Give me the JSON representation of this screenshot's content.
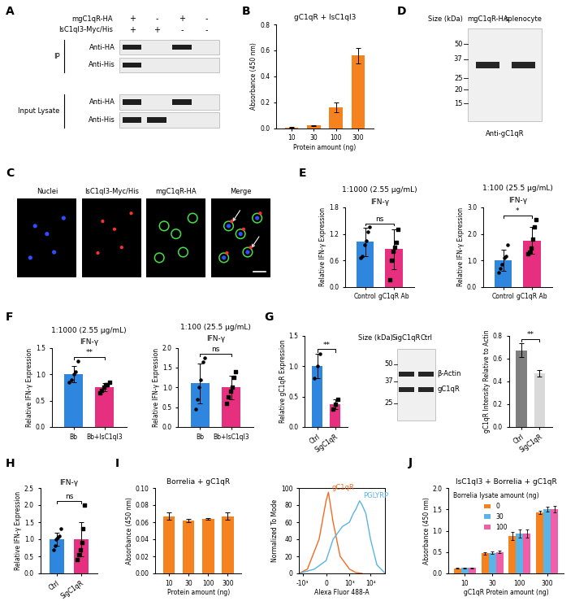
{
  "chart_data": [
    {
      "label": "B",
      "type": "bar",
      "title": "gC1qR + IsC1ql3",
      "x_label": "Protein amount (ng)",
      "y_label": "Absorbance (450 nm)",
      "categories": [
        "10",
        "30",
        "100",
        "300"
      ],
      "values": [
        0.005,
        0.02,
        0.16,
        0.56
      ],
      "errors": [
        0.002,
        0.005,
        0.04,
        0.06
      ],
      "color": "#f5821f",
      "ylim": [
        0,
        0.8
      ],
      "yticks": [
        {
          "value": 0,
          "label": "0.0"
        },
        0.2,
        0.4,
        0.6,
        0.8
      ]
    },
    {
      "label": "E",
      "type": "bar",
      "title": "1:1000 (2.55 μg/mL)",
      "subtitle": "IFN-γ",
      "y_label": "Relative IFN-γ Expression",
      "categories": [
        "Control",
        "gC1qR Ab"
      ],
      "values": [
        1.02,
        0.85
      ],
      "errors": [
        0.32,
        0.45
      ],
      "points": [
        [
          0.65,
          0.7,
          0.95,
          1.05,
          1.25,
          1.35
        ],
        [
          0.15,
          0.6,
          0.8,
          0.9,
          1.0,
          1.3
        ]
      ],
      "colors": [
        "#2e86de",
        "#e6307f"
      ],
      "significance": "ns",
      "ylim": [
        0,
        1.8
      ],
      "yticks": [
        {
          "value": 0,
          "label": "0.0"
        },
        0.6,
        1.2,
        1.8
      ]
    },
    {
      "type": "bar",
      "title": "1:100 (25.5 μg/mL)",
      "subtitle": "IFN-γ",
      "y_label": "Relative IFN-γ Expression",
      "categories": [
        "Control",
        "gC1qR Ab"
      ],
      "values": [
        1.0,
        1.75
      ],
      "errors": [
        0.4,
        0.5
      ],
      "points": [
        [
          0.55,
          0.7,
          0.85,
          1.1,
          1.15,
          1.6
        ],
        [
          1.25,
          1.3,
          1.45,
          1.8,
          2.25,
          2.55
        ]
      ],
      "colors": [
        "#2e86de",
        "#e6307f"
      ],
      "significance": "*",
      "ylim": [
        0,
        3
      ],
      "yticks": [
        {
          "value": 0,
          "label": "0.0"
        },
        {
          "value": 1,
          "label": "1.0"
        },
        {
          "value": 2,
          "label": "2.0"
        },
        {
          "value": 3,
          "label": "3.0"
        }
      ]
    },
    {
      "label": "F",
      "type": "bar",
      "title": "1:1000 (2.55 μg/mL)",
      "subtitle": "IFN-γ",
      "y_label": "Relative IFN-γ Expression",
      "categories": [
        "Bb",
        "Bb+IsC1ql3"
      ],
      "values": [
        1.0,
        0.75
      ],
      "errors": [
        0.15,
        0.08
      ],
      "points": [
        [
          0.85,
          0.9,
          1.0,
          1.05,
          1.25
        ],
        [
          0.65,
          0.7,
          0.75,
          0.8,
          0.8,
          0.85
        ]
      ],
      "colors": [
        "#2e86de",
        "#e6307f"
      ],
      "significance": "**",
      "ylim": [
        0,
        1.5
      ],
      "yticks": [
        {
          "value": 0,
          "label": "0.0"
        },
        0.5,
        {
          "value": 1,
          "label": "1.0"
        },
        1.5
      ]
    },
    {
      "type": "bar",
      "title": "1:100 (25.5 μg/mL)",
      "subtitle": "IFN-γ",
      "y_label": "Relative IFN-γ Expression",
      "categories": [
        "Bb",
        "Bb+IsC1ql3"
      ],
      "values": [
        1.1,
        1.0
      ],
      "errors": [
        0.5,
        0.3
      ],
      "points": [
        [
          0.45,
          0.7,
          1.0,
          1.2,
          1.65,
          1.75
        ],
        [
          0.6,
          0.75,
          0.9,
          1.0,
          1.25,
          1.4
        ]
      ],
      "colors": [
        "#2e86de",
        "#e6307f"
      ],
      "significance": "ns",
      "ylim": [
        0,
        2
      ],
      "yticks": [
        {
          "value": 0,
          "label": "0.0"
        },
        0.5,
        {
          "value": 1,
          "label": "1.0"
        },
        1.5,
        {
          "value": 2,
          "label": "2.0"
        }
      ]
    },
    {
      "label": "G",
      "type": "bar",
      "y_label": "Relative gC1qR Expression",
      "categories": [
        "Ctrl",
        "SigC1qR"
      ],
      "values": [
        1.0,
        0.38
      ],
      "errors": [
        0.2,
        0.08
      ],
      "points": [
        [
          0.8,
          1.0,
          1.2
        ],
        [
          0.3,
          0.38,
          0.45
        ]
      ],
      "colors": [
        "#2e86de",
        "#e6307f"
      ],
      "significance": "**",
      "ylim": [
        0,
        1.5
      ],
      "yticks": [
        {
          "value": 0,
          "label": "0.0"
        },
        0.5,
        {
          "value": 1,
          "label": "1.0"
        },
        1.5
      ]
    },
    {
      "type": "bar",
      "y_label": "gC1qR Intensity Relative to Actin",
      "categories": [
        "Ctrl",
        "SigC1qR"
      ],
      "values": [
        0.67,
        0.47
      ],
      "errors": [
        0.06,
        0.03
      ],
      "colors": [
        "#7f7f7f",
        "#d9d9d9"
      ],
      "significance": "**",
      "ylim": [
        0,
        0.8
      ],
      "yticks": [
        {
          "value": 0,
          "label": "0.0"
        },
        0.2,
        0.4,
        0.6,
        0.8
      ]
    },
    {
      "label": "H",
      "type": "bar",
      "subtitle": "IFN-γ",
      "y_label": "Relative IFN-γ Expression",
      "categories": [
        "Ctrl",
        "SigC1qR"
      ],
      "values": [
        1.0,
        1.0
      ],
      "errors": [
        0.2,
        0.5
      ],
      "points": [
        [
          0.7,
          0.8,
          1.0,
          1.05,
          1.1,
          1.3
        ],
        [
          0.4,
          0.55,
          0.7,
          0.9,
          1.3,
          2.0
        ]
      ],
      "colors": [
        "#2e86de",
        "#e6307f"
      ],
      "significance": "ns",
      "ylim": [
        0,
        2.5
      ],
      "yticks": [
        {
          "value": 0,
          "label": "0.0"
        },
        0.5,
        {
          "value": 1,
          "label": "1.0"
        },
        1.5,
        {
          "value": 2,
          "label": "2.0"
        },
        2.5
      ]
    },
    {
      "label": "I",
      "type": "bar",
      "title": "Borrelia + gC1qR",
      "x_label": "Protein amount (ng)",
      "y_label": "Absorbance (450 nm)",
      "categories": [
        "10",
        "30",
        "100",
        "300"
      ],
      "values": [
        0.067,
        0.062,
        0.064,
        0.067
      ],
      "errors": [
        0.004,
        0.002,
        0.001,
        0.004
      ],
      "color": "#f5821f",
      "ylim": [
        0,
        0.1
      ],
      "yticks": [
        {
          "value": 0,
          "label": "0.00"
        },
        {
          "value": 0.02,
          "label": "0.02"
        },
        {
          "value": 0.04,
          "label": "0.04"
        },
        {
          "value": 0.06,
          "label": "0.06"
        },
        {
          "value": 0.08,
          "label": "0.08"
        },
        {
          "value": 0.1,
          "label": "0.10"
        }
      ]
    },
    {
      "type": "line",
      "x_label": "Alexa Fluor 488-A",
      "y_label": "Normalized To Mode",
      "log": "x",
      "series": [
        {
          "name": "gC1qR",
          "color": "#f26b21",
          "x": [
            -1500,
            -800,
            -300,
            0,
            100,
            300,
            600,
            1000,
            2000,
            4000
          ],
          "values": [
            0,
            5,
            40,
            85,
            95,
            60,
            20,
            5,
            1,
            0
          ]
        },
        {
          "name": "PGLYRP",
          "color": "#5ab4e5",
          "x": [
            -1500,
            -500,
            0,
            300,
            700,
            1000,
            1500,
            2000,
            3000,
            4000,
            6000,
            10000,
            20000,
            50000
          ],
          "values": [
            0,
            5,
            15,
            40,
            55,
            60,
            70,
            75,
            85,
            80,
            70,
            40,
            10,
            0
          ]
        }
      ],
      "xlim": [
        -1500,
        50000
      ],
      "xticks": [
        {
          "value": -1000,
          "label": "-10³"
        },
        0,
        {
          "value": 1000,
          "label": "10³"
        },
        {
          "value": 10000,
          "label": "10⁴"
        }
      ],
      "ylim": [
        0,
        100
      ],
      "yticks": [
        0,
        20,
        40,
        60,
        80,
        100
      ]
    },
    {
      "label": "J",
      "type": "bar",
      "title": "IsC1ql3 + Borrelia + gC1qR",
      "x_label": "gC1qR Protein amount (ng)",
      "y_label": "Absorbance (450 nm)",
      "categories": [
        "10",
        "30",
        "100",
        "300"
      ],
      "series": [
        {
          "name": "0",
          "color": "#f5821f",
          "values": [
            0.12,
            0.47,
            0.88,
            1.43
          ],
          "errors": [
            0.01,
            0.03,
            0.1,
            0.04
          ]
        },
        {
          "name": "30",
          "color": "#5ab4e5",
          "values": [
            0.13,
            0.48,
            0.93,
            1.5
          ],
          "errors": [
            0.01,
            0.03,
            0.1,
            0.06
          ]
        },
        {
          "name": "100",
          "color": "#ef5fa7",
          "values": [
            0.13,
            0.5,
            0.93,
            1.5
          ],
          "errors": [
            0.01,
            0.03,
            0.1,
            0.08
          ]
        }
      ],
      "legend": "upper left",
      "legend_title": "Borrelia lysate amount (ng)",
      "ylim": [
        0,
        2
      ],
      "yticks": [
        {
          "value": 0,
          "label": "0.0"
        },
        0.5,
        {
          "value": 1,
          "label": "1.0"
        },
        1.5,
        {
          "value": 2,
          "label": "2.0"
        }
      ]
    }
  ],
  "blots": [
    {
      "label": "A",
      "conditions": [
        {
          "name": "mgC1qR-HA",
          "signs": [
            "+",
            "-",
            "+",
            "-"
          ]
        },
        {
          "name": "IsC1ql3-Myc/His",
          "signs": [
            "+",
            "+",
            "-",
            "-"
          ]
        }
      ],
      "groups": [
        {
          "name": "IP",
          "rows": [
            {
              "name": "Anti-HA",
              "bands": [
                true,
                false,
                true,
                false
              ]
            },
            {
              "name": "Anti-His",
              "bands": [
                true,
                false,
                false,
                false
              ]
            }
          ]
        },
        {
          "name": "Input Lysate",
          "rows": [
            {
              "name": "Anti-HA",
              "bands": [
                true,
                false,
                true,
                false
              ]
            },
            {
              "name": "Anti-His",
              "bands": [
                true,
                true,
                false,
                false
              ]
            }
          ]
        }
      ]
    },
    {
      "label": "D",
      "size_label": "Size (kDa)",
      "lanes": [
        "mgC1qR-HA",
        "splenocyte"
      ],
      "sizes": [
        50,
        37,
        25,
        20,
        15
      ],
      "bands": [
        {
          "size": 33
        }
      ],
      "antibody": "Anti-gC1qR"
    },
    {
      "size_label": "Size (kDa)",
      "lanes": [
        "SigC1qR",
        "Ctrl"
      ],
      "sizes": [
        50,
        37,
        25
      ],
      "bands": [
        {
          "name": "β-Actin",
          "size": 42
        },
        {
          "name": "gC1qR",
          "size": 32
        }
      ]
    }
  ],
  "images": [
    {
      "label": "C",
      "channels": [
        "Nuclei",
        "IsC1ql3-Myc/His",
        "mgC1qR-HA",
        "Merge"
      ]
    }
  ]
}
